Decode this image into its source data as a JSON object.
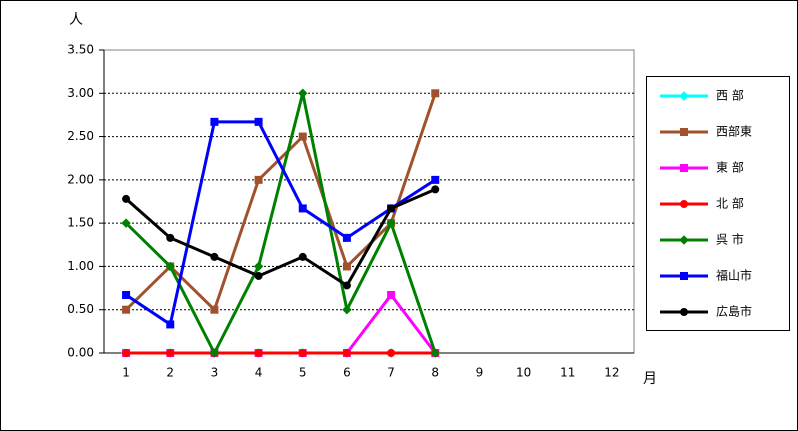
{
  "chart_data": {
    "type": "line",
    "y_label": "人",
    "x_label": "月",
    "categories": [
      "1",
      "2",
      "3",
      "4",
      "5",
      "6",
      "7",
      "8",
      "9",
      "10",
      "11",
      "12"
    ],
    "ylim": [
      0,
      3.5
    ],
    "yticks": [
      {
        "value": 0,
        "label": "0.00"
      },
      {
        "value": 0.5,
        "label": "0.50"
      },
      {
        "value": 1,
        "label": "1.00"
      },
      {
        "value": 1.5,
        "label": "1.50"
      },
      {
        "value": 2,
        "label": "2.00"
      },
      {
        "value": 2.5,
        "label": "2.50"
      },
      {
        "value": 3,
        "label": "3.00"
      },
      {
        "value": 3.5,
        "label": "3.50"
      }
    ],
    "grid": true,
    "legend": "right",
    "series": [
      {
        "name": "西 部",
        "color": "#00ffff",
        "marker": "diamond",
        "values": [
          0,
          0,
          0,
          0,
          0,
          0,
          0,
          0,
          null,
          null,
          null,
          null
        ]
      },
      {
        "name": "西部東",
        "color": "#a0522d",
        "marker": "square",
        "values": [
          0.5,
          1,
          0.5,
          2,
          2.5,
          1,
          1.5,
          3,
          null,
          null,
          null,
          null
        ]
      },
      {
        "name": "東 部",
        "color": "#ff00ff",
        "marker": "square",
        "values": [
          0,
          0,
          0,
          0,
          0,
          0,
          0.67,
          0,
          null,
          null,
          null,
          null
        ]
      },
      {
        "name": "北 部",
        "color": "#ff0000",
        "marker": "circle",
        "values": [
          0,
          0,
          0,
          0,
          0,
          0,
          0,
          0,
          null,
          null,
          null,
          null
        ]
      },
      {
        "name": "呉 市",
        "color": "#008000",
        "marker": "diamond",
        "values": [
          1.5,
          1,
          0,
          1,
          3,
          0.5,
          1.5,
          0,
          null,
          null,
          null,
          null
        ]
      },
      {
        "name": "福山市",
        "color": "#0000ff",
        "marker": "square",
        "values": [
          0.67,
          0.33,
          2.67,
          2.67,
          1.67,
          1.33,
          1.67,
          2,
          null,
          null,
          null,
          null
        ]
      },
      {
        "name": "広島市",
        "color": "#000000",
        "marker": "circle",
        "values": [
          1.78,
          1.33,
          1.11,
          0.89,
          1.11,
          0.78,
          1.67,
          1.89,
          null,
          null,
          null,
          null
        ]
      }
    ]
  }
}
